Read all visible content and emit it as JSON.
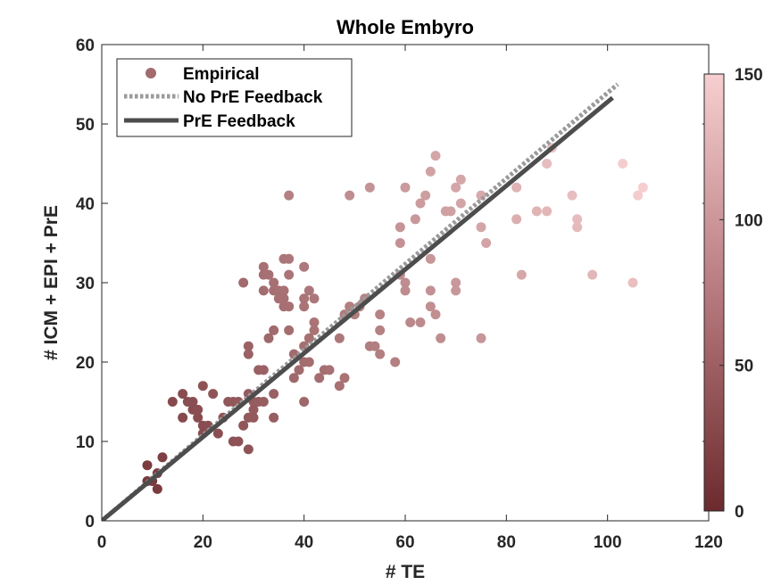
{
  "chart_data": {
    "type": "scatter",
    "title": "Whole Embyro",
    "xlabel": "# TE",
    "ylabel": "# ICM + EPI + PrE",
    "xlim": [
      0,
      120
    ],
    "ylim": [
      0,
      60
    ],
    "xticks": [
      0,
      20,
      40,
      60,
      80,
      100,
      120
    ],
    "yticks": [
      0,
      10,
      20,
      30,
      40,
      50,
      60
    ],
    "grid": false,
    "legend_position": "top-left",
    "colorbar": {
      "range": [
        0,
        150
      ],
      "ticks": [
        0,
        50,
        100,
        150
      ],
      "color_low": "#6b2a2e",
      "color_high": "#f7cfd0",
      "encodes": "total cell count (TE + ICM + EPI + PrE)"
    },
    "series": [
      {
        "name": "Empirical",
        "kind": "scatter",
        "points": [
          [
            9,
            7
          ],
          [
            9,
            5
          ],
          [
            10,
            5
          ],
          [
            11,
            6
          ],
          [
            11,
            4
          ],
          [
            12,
            8
          ],
          [
            14,
            15
          ],
          [
            16,
            16
          ],
          [
            16,
            13
          ],
          [
            17,
            15
          ],
          [
            18,
            15
          ],
          [
            18,
            14
          ],
          [
            19,
            14
          ],
          [
            19,
            13
          ],
          [
            20,
            17
          ],
          [
            20,
            12
          ],
          [
            20,
            11
          ],
          [
            21,
            12
          ],
          [
            22,
            16
          ],
          [
            23,
            11
          ],
          [
            24,
            13
          ],
          [
            25,
            15
          ],
          [
            26,
            10
          ],
          [
            26,
            15
          ],
          [
            27,
            10
          ],
          [
            27,
            15
          ],
          [
            28,
            12
          ],
          [
            28,
            30
          ],
          [
            29,
            22
          ],
          [
            29,
            21
          ],
          [
            29,
            16
          ],
          [
            29,
            13
          ],
          [
            29,
            9
          ],
          [
            30,
            15
          ],
          [
            30,
            14
          ],
          [
            30,
            13
          ],
          [
            31,
            19
          ],
          [
            31,
            15
          ],
          [
            32,
            32
          ],
          [
            32,
            31
          ],
          [
            32,
            29
          ],
          [
            32,
            19
          ],
          [
            32,
            15
          ],
          [
            33,
            31
          ],
          [
            33,
            23
          ],
          [
            34,
            30
          ],
          [
            34,
            29
          ],
          [
            34,
            24
          ],
          [
            34,
            16
          ],
          [
            34,
            13
          ],
          [
            35,
            29
          ],
          [
            35,
            28
          ],
          [
            36,
            33
          ],
          [
            36,
            29
          ],
          [
            36,
            28
          ],
          [
            36,
            27
          ],
          [
            37,
            41
          ],
          [
            37,
            33
          ],
          [
            37,
            31
          ],
          [
            37,
            27
          ],
          [
            37,
            24
          ],
          [
            38,
            21
          ],
          [
            38,
            18
          ],
          [
            39,
            19
          ],
          [
            40,
            32
          ],
          [
            40,
            28
          ],
          [
            40,
            27
          ],
          [
            40,
            22
          ],
          [
            40,
            20
          ],
          [
            40,
            15
          ],
          [
            41,
            29
          ],
          [
            41,
            23
          ],
          [
            41,
            20
          ],
          [
            42,
            28
          ],
          [
            42,
            25
          ],
          [
            42,
            24
          ],
          [
            43,
            18
          ],
          [
            44,
            19
          ],
          [
            45,
            19
          ],
          [
            47,
            23
          ],
          [
            47,
            17
          ],
          [
            48,
            26
          ],
          [
            48,
            18
          ],
          [
            49,
            41
          ],
          [
            49,
            27
          ],
          [
            50,
            26
          ],
          [
            51,
            27
          ],
          [
            52,
            28
          ],
          [
            53,
            42
          ],
          [
            53,
            22
          ],
          [
            54,
            22
          ],
          [
            55,
            26
          ],
          [
            55,
            24
          ],
          [
            55,
            21
          ],
          [
            58,
            20
          ],
          [
            59,
            37
          ],
          [
            59,
            35
          ],
          [
            59,
            31
          ],
          [
            60,
            42
          ],
          [
            60,
            30
          ],
          [
            60,
            29
          ],
          [
            61,
            25
          ],
          [
            62,
            38
          ],
          [
            63,
            40
          ],
          [
            63,
            25
          ],
          [
            64,
            41
          ],
          [
            65,
            44
          ],
          [
            65,
            33
          ],
          [
            65,
            29
          ],
          [
            65,
            27
          ],
          [
            66,
            46
          ],
          [
            66,
            26
          ],
          [
            67,
            23
          ],
          [
            68,
            39
          ],
          [
            69,
            39
          ],
          [
            70,
            42
          ],
          [
            70,
            30
          ],
          [
            70,
            29
          ],
          [
            71,
            43
          ],
          [
            71,
            40
          ],
          [
            75,
            41
          ],
          [
            75,
            37
          ],
          [
            75,
            23
          ],
          [
            76,
            35
          ],
          [
            82,
            42
          ],
          [
            82,
            38
          ],
          [
            83,
            31
          ],
          [
            86,
            39
          ],
          [
            88,
            45
          ],
          [
            88,
            39
          ],
          [
            89,
            47
          ],
          [
            93,
            41
          ],
          [
            94,
            38
          ],
          [
            94,
            37
          ],
          [
            97,
            31
          ],
          [
            103,
            45
          ],
          [
            105,
            30
          ],
          [
            106,
            41
          ],
          [
            107,
            42
          ]
        ]
      },
      {
        "name": "No PrE Feedback",
        "kind": "line",
        "style": "dotted",
        "color": "#9a9a9a",
        "x": [
          0,
          102
        ],
        "y": [
          0,
          55
        ]
      },
      {
        "name": "PrE Feedback",
        "kind": "line",
        "style": "solid",
        "color": "#4d4d4d",
        "x": [
          0,
          101
        ],
        "y": [
          0,
          53.3
        ]
      }
    ]
  }
}
